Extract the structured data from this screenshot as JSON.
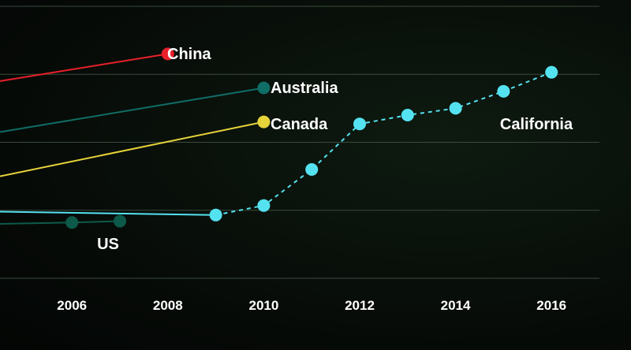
{
  "chart_data": {
    "type": "line",
    "title": "",
    "xlabel": "",
    "ylabel": "",
    "xlim": [
      2004.5,
      2017.0
    ],
    "xticks": [
      2006,
      2008,
      2010,
      2012,
      2014,
      2016
    ],
    "ylim": [
      0,
      4
    ],
    "grid": true,
    "legend": "direct labels at line ends",
    "series": [
      {
        "name": "China",
        "color": "#e8202a",
        "style": "solid",
        "x": [
          2004.5,
          2008
        ],
        "y": [
          2.9,
          3.3
        ],
        "marker_x": [
          2008
        ],
        "marker_y": [
          3.3
        ]
      },
      {
        "name": "Australia",
        "color": "#0f6e66",
        "style": "solid",
        "x": [
          2004.5,
          2010
        ],
        "y": [
          2.15,
          2.8
        ],
        "marker_x": [
          2010
        ],
        "marker_y": [
          2.8
        ]
      },
      {
        "name": "Canada",
        "color": "#e6d33a",
        "style": "solid",
        "x": [
          2004.5,
          2010
        ],
        "y": [
          1.5,
          2.3
        ],
        "marker_x": [
          2010
        ],
        "marker_y": [
          2.3
        ]
      },
      {
        "name": "US",
        "color": "#0e5a4a",
        "style": "solid",
        "x": [
          2004.5,
          2006,
          2007
        ],
        "y": [
          0.8,
          0.82,
          0.84
        ],
        "marker_x": [
          2006,
          2007
        ],
        "marker_y": [
          0.82,
          0.84
        ]
      },
      {
        "name": "California",
        "color": "#55e2f0",
        "style": "dashed",
        "x": [
          2009,
          2010,
          2011,
          2012,
          2013,
          2014,
          2015,
          2016
        ],
        "y": [
          0.93,
          1.07,
          1.6,
          2.27,
          2.4,
          2.5,
          2.75,
          3.03
        ],
        "lead_in_x": [
          2004.5,
          2009
        ],
        "lead_in_y": [
          0.98,
          0.93
        ]
      }
    ]
  }
}
